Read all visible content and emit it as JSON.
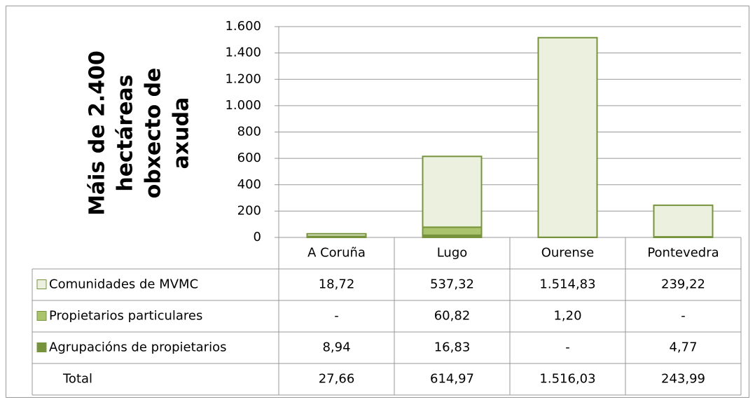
{
  "chart_data": {
    "type": "stacked_bar",
    "ylabel": [
      "Máis de 2.400",
      "hectáreas",
      "obxecto de",
      "axuda"
    ],
    "categories": [
      "A Coruña",
      "Lugo",
      "Ourense",
      "Pontevedra"
    ],
    "series": [
      {
        "name": "Comunidades de MVMC",
        "color": "#ebf1de",
        "values": [
          18.72,
          537.32,
          1514.83,
          239.22
        ],
        "value_labels": [
          "18,72",
          "537,32",
          "1.514,83",
          "239,22"
        ]
      },
      {
        "name": "Propietarios particulares",
        "color": "#a9c46c",
        "values": [
          null,
          60.82,
          1.2,
          null
        ],
        "value_labels": [
          "-",
          "60,82",
          "1,20",
          "-"
        ]
      },
      {
        "name": "Agrupacións de propietarios",
        "color": "#77933c",
        "values": [
          8.94,
          16.83,
          null,
          4.77
        ],
        "value_labels": [
          "8,94",
          "16,83",
          "-",
          "4,77"
        ]
      }
    ],
    "total_name": "Total",
    "totals": [
      27.66,
      614.97,
      1516.03,
      243.99
    ],
    "total_labels": [
      "27,66",
      "614,97",
      "1.516,03",
      "243,99"
    ],
    "stroke": "#77933c",
    "ylim": [
      0,
      1600
    ],
    "yticks": [
      0,
      200,
      400,
      600,
      800,
      {
        "value": 1000,
        "label": "1.000"
      },
      {
        "value": 1200,
        "label": "1.200"
      },
      {
        "value": 1400,
        "label": "1.400"
      },
      {
        "value": 1600,
        "label": "1.600"
      }
    ],
    "grid": true
  }
}
